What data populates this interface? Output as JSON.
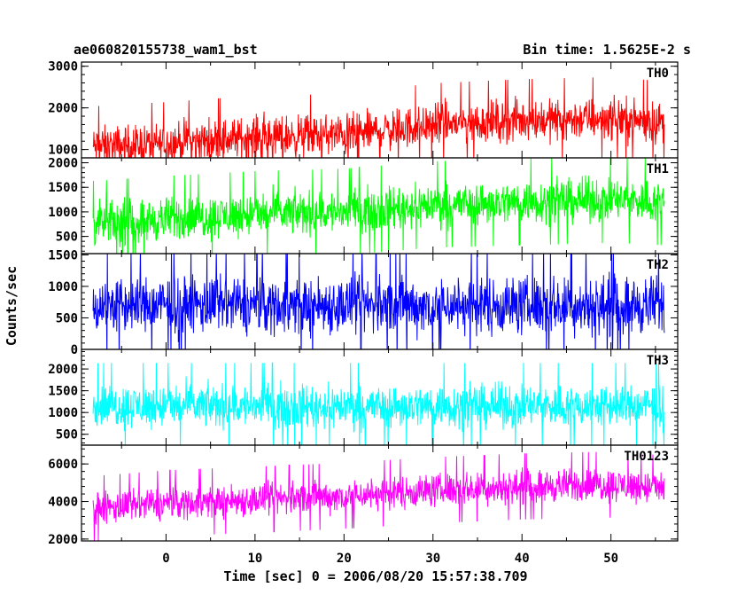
{
  "header": {
    "left_title": "ae060820155738_wam1_bst",
    "right_title": "Bin time: 1.5625E-2 s"
  },
  "axes": {
    "ylabel": "Counts/sec",
    "xlabel": "Time [sec] 0 = 2006/08/20 15:57:38.709"
  },
  "chart_data": {
    "type": "line",
    "x_range": [
      -9.5,
      57.5
    ],
    "x_data_range": [
      -8.2,
      56.0
    ],
    "x_ticks": [
      0,
      10,
      20,
      30,
      40,
      50
    ],
    "x_tick_labels": [
      "0",
      "10",
      "20",
      "30",
      "40",
      "50"
    ],
    "panels": [
      {
        "name": "TH0",
        "color": "#ff0000",
        "ylim": [
          800,
          3100
        ],
        "y_ticks": [
          1000,
          2000,
          3000
        ],
        "y_tick_labels": [
          "1000",
          "2000",
          "3000"
        ],
        "trend_x": [
          -8,
          0,
          10,
          20,
          30,
          40,
          50,
          56
        ],
        "trend_center": [
          1050,
          1150,
          1300,
          1350,
          1600,
          1700,
          1750,
          1650
        ],
        "spread": 450
      },
      {
        "name": "TH1",
        "color": "#00ff00",
        "ylim": [
          150,
          2100
        ],
        "y_ticks": [
          500,
          1000,
          1500,
          2000
        ],
        "y_tick_labels": [
          "500",
          "1000",
          "1500",
          "2000"
        ],
        "trend_x": [
          -8,
          0,
          10,
          20,
          30,
          40,
          50,
          56
        ],
        "trend_center": [
          750,
          850,
          950,
          1000,
          1150,
          1200,
          1250,
          1200
        ],
        "spread": 400
      },
      {
        "name": "TH2",
        "color": "#0000ff",
        "ylim": [
          0,
          1520
        ],
        "y_ticks": [
          0,
          500,
          1000,
          1500
        ],
        "y_tick_labels": [
          "0",
          "500",
          "1000",
          "1500"
        ],
        "trend_x": [
          -8,
          0,
          10,
          20,
          30,
          40,
          50,
          56
        ],
        "trend_center": [
          700,
          700,
          700,
          700,
          700,
          700,
          700,
          700
        ],
        "spread": 420
      },
      {
        "name": "TH3",
        "color": "#00ffff",
        "ylim": [
          250,
          2450
        ],
        "y_ticks": [
          500,
          1000,
          1500,
          2000
        ],
        "y_tick_labels": [
          "500",
          "1000",
          "1500",
          "2000"
        ],
        "trend_x": [
          -8,
          0,
          10,
          20,
          30,
          40,
          50,
          56
        ],
        "trend_center": [
          1150,
          1150,
          1150,
          1150,
          1150,
          1150,
          1150,
          1150
        ],
        "spread": 450
      },
      {
        "name": "TH0123",
        "color": "#ff00ff",
        "ylim": [
          1900,
          7000
        ],
        "y_ticks": [
          2000,
          4000,
          6000
        ],
        "y_tick_labels": [
          "2000",
          "4000",
          "6000"
        ],
        "trend_x": [
          -8,
          0,
          10,
          20,
          30,
          40,
          50,
          56
        ],
        "trend_center": [
          3600,
          3900,
          4100,
          4300,
          4600,
          4800,
          4900,
          4700
        ],
        "spread": 800
      }
    ]
  }
}
